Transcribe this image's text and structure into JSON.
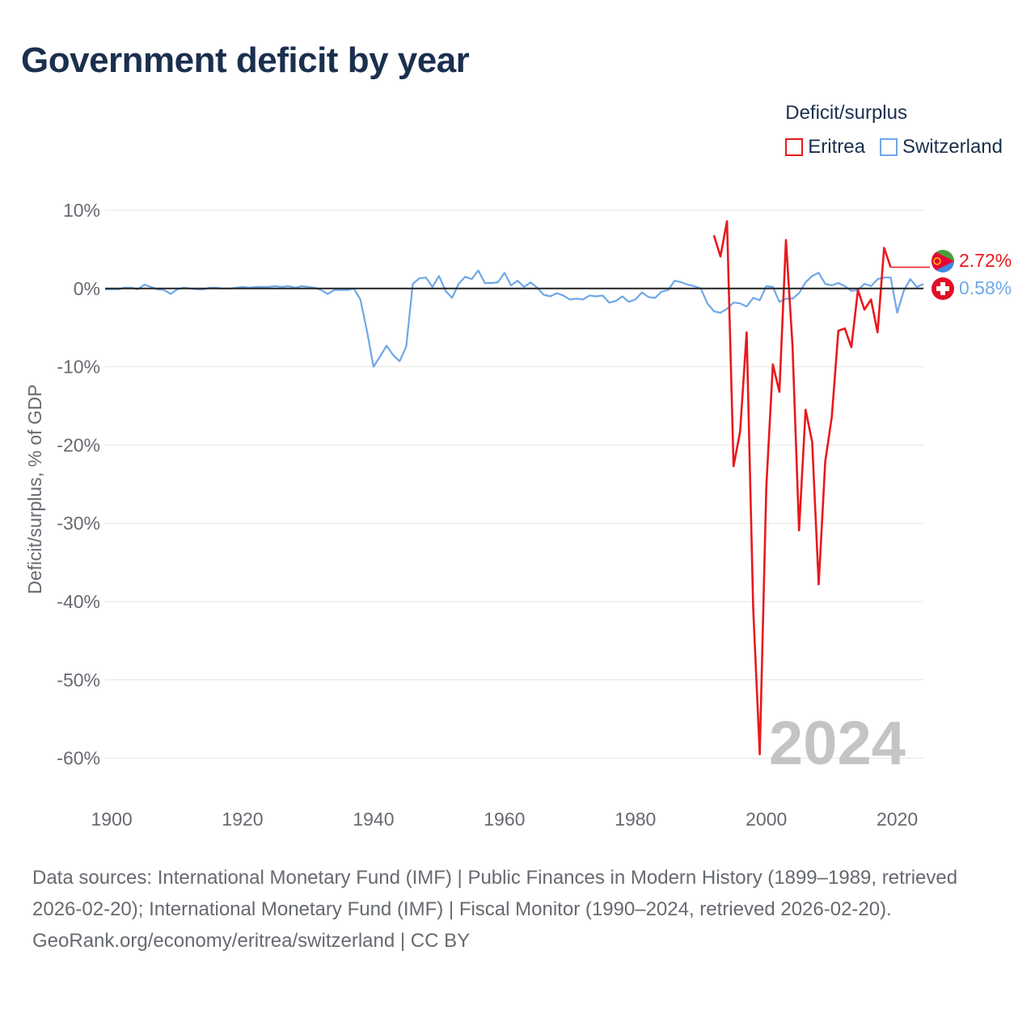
{
  "title": "Government deficit by year",
  "legend": {
    "title": "Deficit/surplus",
    "items": [
      {
        "name": "Eritrea",
        "color": "#e8191c"
      },
      {
        "name": "Switzerland",
        "color": "#6fa8e6"
      }
    ]
  },
  "year_watermark": "2024",
  "end_labels": {
    "eritrea": "2.72%",
    "switzerland": "0.58%"
  },
  "footer": {
    "sources": "Data sources: International Monetary Fund (IMF) | Public Finances in Modern History (1899–1989, retrieved 2026-02-20); International Monetary Fund (IMF) | Fiscal Monitor (1990–2024, retrieved 2026-02-20).",
    "credit": "GeoRank.org/economy/eritrea/switzerland | CC BY"
  },
  "chart_data": {
    "type": "line",
    "title": "Government deficit by year",
    "xlabel": "",
    "ylabel": "Deficit/surplus, % of GDP",
    "xlim": [
      1900,
      2024
    ],
    "ylim": [
      -62,
      10
    ],
    "x_ticks": [
      1900,
      1920,
      1940,
      1960,
      1980,
      2000,
      2020
    ],
    "x_tick_labels": [
      "1900",
      "1920",
      "1940",
      "1960",
      "1980",
      "2000",
      "2020"
    ],
    "y_ticks": [
      10,
      0,
      -10,
      -20,
      -30,
      -40,
      -50,
      -60
    ],
    "y_tick_labels": [
      "10%",
      "0%",
      "-10%",
      "-20%",
      "-30%",
      "-40%",
      "-50%",
      "-60%"
    ],
    "grid": true,
    "legend_position": "top-right",
    "series": [
      {
        "name": "Eritrea",
        "color": "#e8191c",
        "x": [
          1992,
          1993,
          1994,
          1995,
          1996,
          1997,
          1998,
          1999,
          2000,
          2001,
          2002,
          2003,
          2004,
          2005,
          2006,
          2007,
          2008,
          2009,
          2010,
          2011,
          2012,
          2013,
          2014,
          2015,
          2016,
          2017,
          2018,
          2019
        ],
        "values": [
          6.8,
          4.1,
          8.6,
          -22.7,
          -18.3,
          -5.6,
          -40.9,
          -59.5,
          -25.4,
          -9.7,
          -13.2,
          6.2,
          -7.3,
          -30.9,
          -15.5,
          -19.6,
          -37.8,
          -22.1,
          -16.4,
          -5.4,
          -5.1,
          -7.5,
          -0.2,
          -2.7,
          -1.4,
          -5.6,
          5.2,
          2.72
        ]
      },
      {
        "name": "Switzerland",
        "color": "#6fa8e6",
        "x": [
          1899,
          1900,
          1901,
          1902,
          1903,
          1904,
          1905,
          1906,
          1907,
          1908,
          1909,
          1910,
          1911,
          1912,
          1913,
          1914,
          1915,
          1916,
          1917,
          1918,
          1919,
          1920,
          1921,
          1922,
          1923,
          1924,
          1925,
          1926,
          1927,
          1928,
          1929,
          1930,
          1931,
          1932,
          1933,
          1934,
          1935,
          1936,
          1937,
          1938,
          1939,
          1940,
          1941,
          1942,
          1943,
          1944,
          1945,
          1946,
          1947,
          1948,
          1949,
          1950,
          1951,
          1952,
          1953,
          1954,
          1955,
          1956,
          1957,
          1958,
          1959,
          1960,
          1961,
          1962,
          1963,
          1964,
          1965,
          1966,
          1967,
          1968,
          1969,
          1970,
          1971,
          1972,
          1973,
          1974,
          1975,
          1976,
          1977,
          1978,
          1979,
          1980,
          1981,
          1982,
          1983,
          1984,
          1985,
          1986,
          1987,
          1988,
          1989,
          1990,
          1991,
          1992,
          1993,
          1994,
          1995,
          1996,
          1997,
          1998,
          1999,
          2000,
          2001,
          2002,
          2003,
          2004,
          2005,
          2006,
          2007,
          2008,
          2009,
          2010,
          2011,
          2012,
          2013,
          2014,
          2015,
          2016,
          2017,
          2018,
          2019,
          2020,
          2021,
          2022,
          2023,
          2024
        ],
        "values": [
          -0.1,
          -0.1,
          -0.1,
          0.1,
          0.1,
          -0.1,
          0.5,
          0.2,
          -0.1,
          -0.2,
          -0.7,
          -0.1,
          0.1,
          0.0,
          -0.1,
          -0.1,
          0.1,
          0.1,
          0.0,
          0.0,
          0.1,
          0.2,
          0.1,
          0.2,
          0.2,
          0.2,
          0.3,
          0.2,
          0.3,
          0.1,
          0.3,
          0.2,
          0.1,
          -0.2,
          -0.7,
          -0.2,
          -0.2,
          -0.2,
          0.0,
          -1.4,
          -5.4,
          -10.0,
          -8.7,
          -7.3,
          -8.5,
          -9.3,
          -7.4,
          0.6,
          1.3,
          1.4,
          0.2,
          1.6,
          -0.3,
          -1.2,
          0.6,
          1.5,
          1.2,
          2.3,
          0.7,
          0.7,
          0.8,
          2.0,
          0.4,
          1.0,
          0.2,
          0.8,
          0.1,
          -0.8,
          -1.0,
          -0.6,
          -0.9,
          -1.4,
          -1.3,
          -1.4,
          -0.9,
          -1.0,
          -0.9,
          -1.8,
          -1.6,
          -1.0,
          -1.7,
          -1.4,
          -0.5,
          -1.1,
          -1.2,
          -0.4,
          -0.2,
          1.0,
          0.8,
          0.5,
          0.3,
          0.0,
          -1.9,
          -2.9,
          -3.1,
          -2.6,
          -1.8,
          -1.9,
          -2.3,
          -1.2,
          -1.5,
          0.3,
          0.2,
          -1.7,
          -1.3,
          -1.3,
          -0.6,
          0.8,
          1.6,
          2.0,
          0.6,
          0.4,
          0.7,
          0.3,
          -0.3,
          -0.2,
          0.6,
          0.3,
          1.2,
          1.4,
          1.4,
          -3.1,
          -0.3,
          1.2,
          0.2,
          0.58
        ]
      }
    ]
  }
}
